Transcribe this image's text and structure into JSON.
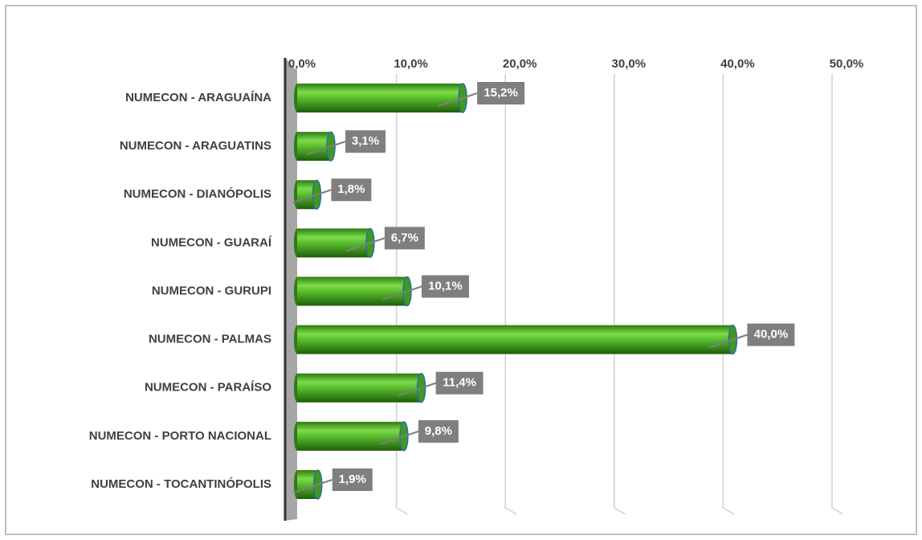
{
  "chart_data": {
    "type": "bar",
    "orientation": "horizontal",
    "categories": [
      "NUMECON - ARAGUAÍNA",
      "NUMECON - ARAGUATINS",
      "NUMECON - DIANÓPOLIS",
      "NUMECON - GUARAÍ",
      "NUMECON - GURUPI",
      "NUMECON - PALMAS",
      "NUMECON - PARAÍSO",
      "NUMECON - PORTO NACIONAL",
      "NUMECON - TOCANTINÓPOLIS"
    ],
    "values": [
      15.2,
      3.1,
      1.8,
      6.7,
      10.1,
      40.0,
      11.4,
      9.8,
      1.9
    ],
    "value_labels": [
      "15,2%",
      "3,1%",
      "1,8%",
      "6,7%",
      "10,1%",
      "40,0%",
      "11,4%",
      "9,8%",
      "1,9%"
    ],
    "color": "#4caf2a",
    "xlim": [
      0,
      50
    ],
    "xticks": [
      {
        "value": 0,
        "label": "0,0%"
      },
      {
        "value": 10,
        "label": "10,0%"
      },
      {
        "value": 20,
        "label": "20,0%"
      },
      {
        "value": 30,
        "label": "30,0%"
      },
      {
        "value": 40,
        "label": "40,0%"
      },
      {
        "value": 50,
        "label": "50,0%"
      }
    ],
    "grid": true
  }
}
